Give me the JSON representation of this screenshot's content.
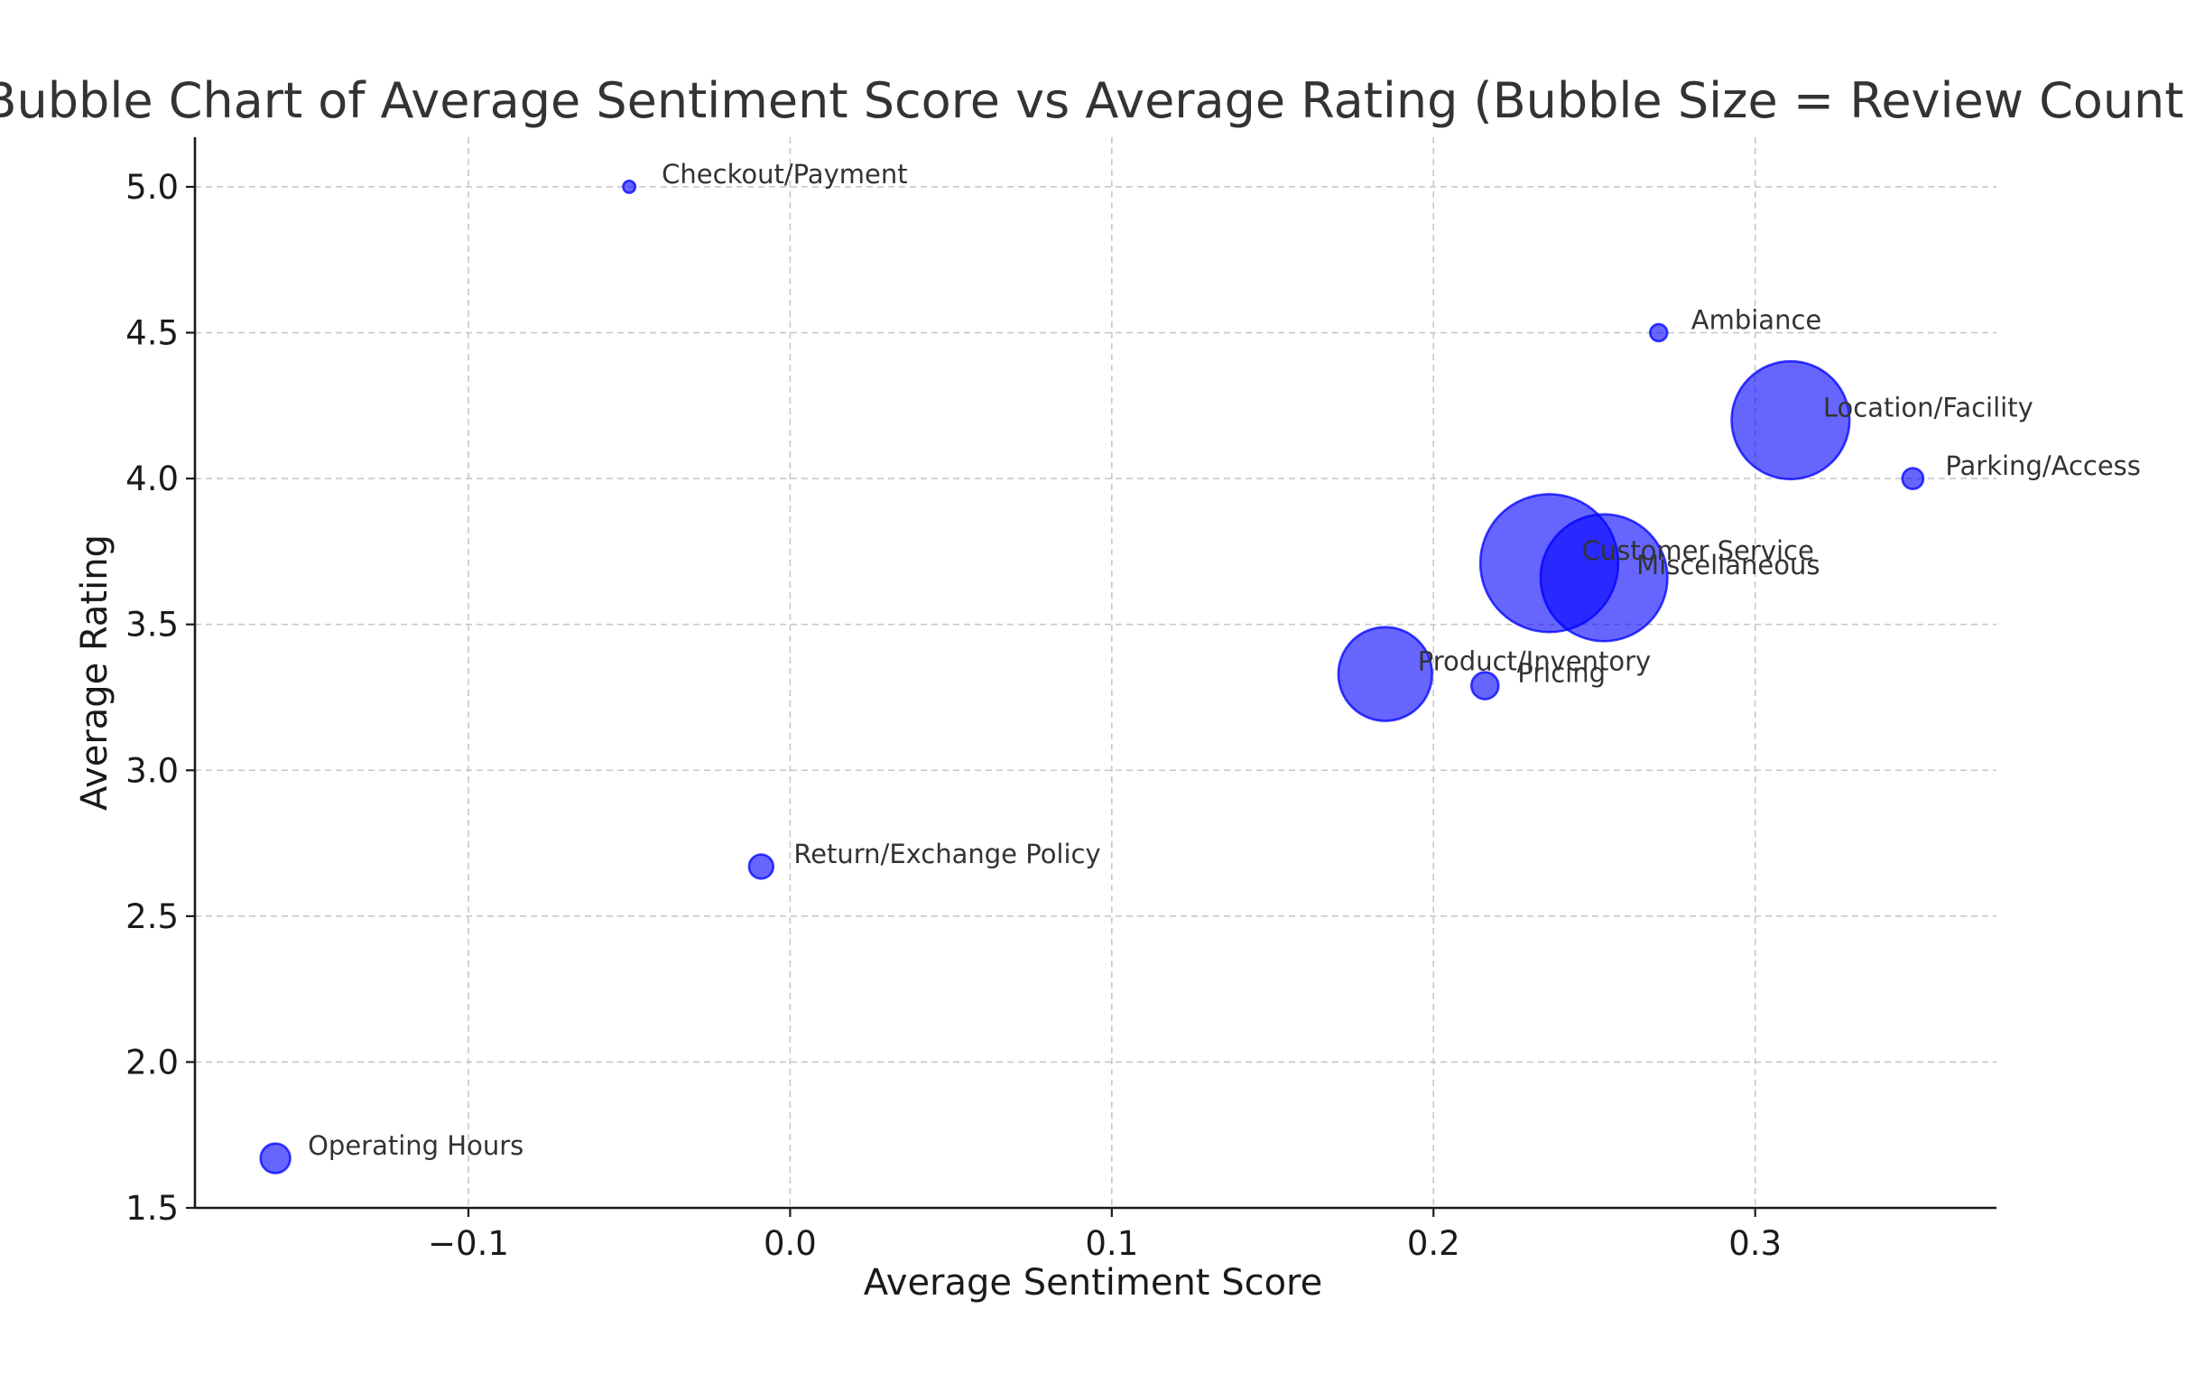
{
  "chart_data": {
    "type": "scatter",
    "title": "Bubble Chart of Average Sentiment Score vs Average Rating (Bubble Size = Review Count)",
    "xlabel": "Average Sentiment Score",
    "ylabel": "Average Rating",
    "xlim": [
      -0.185,
      0.375
    ],
    "ylim": [
      1.5,
      5.17
    ],
    "xticks": [
      -0.1,
      0.0,
      0.1,
      0.2,
      0.3
    ],
    "xtick_labels": [
      "−0.1",
      "0.0",
      "0.1",
      "0.2",
      "0.3"
    ],
    "yticks": [
      1.5,
      2.0,
      2.5,
      3.0,
      3.5,
      4.0,
      4.5,
      5.0
    ],
    "ytick_labels": [
      "1.5",
      "2.0",
      "2.5",
      "3.0",
      "3.5",
      "4.0",
      "4.5",
      "5.0"
    ],
    "grid": true,
    "bubble_color": "#0000ff",
    "bubble_opacity": 0.6,
    "size_legend": "Bubble Size = Review Count",
    "points": [
      {
        "label": "Checkout/Payment",
        "x": -0.05,
        "y": 5.0,
        "size": 1
      },
      {
        "label": "Ambiance",
        "x": 0.27,
        "y": 4.5,
        "size": 2
      },
      {
        "label": "Location/Facility",
        "x": 0.311,
        "y": 4.2,
        "size": 95
      },
      {
        "label": "Parking/Access",
        "x": 0.349,
        "y": 4.0,
        "size": 3
      },
      {
        "label": "Customer Service",
        "x": 0.236,
        "y": 3.71,
        "size": 130
      },
      {
        "label": "Miscellaneous",
        "x": 0.253,
        "y": 3.66,
        "size": 110
      },
      {
        "label": "Product/Inventory",
        "x": 0.185,
        "y": 3.33,
        "size": 60
      },
      {
        "label": "Pricing",
        "x": 0.216,
        "y": 3.29,
        "size": 5
      },
      {
        "label": "Return/Exchange Policy",
        "x": -0.009,
        "y": 2.67,
        "size": 4
      },
      {
        "label": "Operating Hours",
        "x": -0.16,
        "y": 1.67,
        "size": 6
      }
    ]
  }
}
